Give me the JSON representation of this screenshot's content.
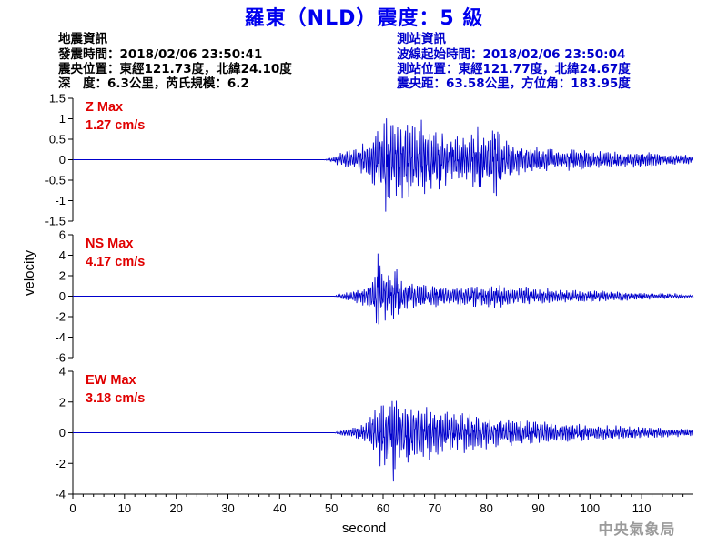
{
  "title": "羅東（NLD）震度：5 級",
  "quake_info": {
    "heading": "地震資訊",
    "lines": [
      "發震時間：2018/02/06 23:50:41",
      "震央位置：東經121.73度，北緯24.10度",
      "深　度：6.3公里，芮氏規模：6.2"
    ]
  },
  "station_info": {
    "heading": "測站資訊",
    "lines": [
      "波線起始時間：2018/02/06 23:50:04",
      "測站位置：東經121.77度，北緯24.67度",
      "震央距：63.58公里，方位角：183.95度"
    ]
  },
  "agency": "中央氣象局",
  "colors": {
    "trace": "#0000cc",
    "max_label": "#e00000",
    "title": "#0000ee",
    "agency": "#9a9a9a"
  },
  "chart_data": {
    "type": "line",
    "xlabel": "second",
    "ylabel": "velocity",
    "xlim": [
      0,
      120
    ],
    "x_ticks": [
      "0",
      "10",
      "20",
      "30",
      "40",
      "50",
      "60",
      "70",
      "80",
      "90",
      "100",
      "110"
    ],
    "panels": [
      {
        "component": "Z",
        "label": "Z Max",
        "max_text": "1.27 cm/s",
        "ylim": [
          -1.5,
          1.5
        ],
        "y_ticks": [
          "1.5",
          "1",
          "0.5",
          "0",
          "-0.5",
          "-1",
          "-1.5"
        ],
        "onset_s": 48.5,
        "peak_s": 60.5,
        "series": [
          {
            "x": 0,
            "y": 0
          },
          {
            "x": 48.5,
            "y": 0
          },
          {
            "x": 50,
            "y": 0.05
          },
          {
            "x": 51,
            "y": -0.12
          },
          {
            "x": 52,
            "y": 0.2
          },
          {
            "x": 53,
            "y": -0.25
          },
          {
            "x": 54,
            "y": 0.3
          },
          {
            "x": 55,
            "y": -0.28
          },
          {
            "x": 56,
            "y": 0.45
          },
          {
            "x": 57,
            "y": -0.5
          },
          {
            "x": 58,
            "y": 0.7
          },
          {
            "x": 59,
            "y": -0.9
          },
          {
            "x": 60,
            "y": 1.0
          },
          {
            "x": 60.5,
            "y": -1.27
          },
          {
            "x": 61.5,
            "y": 0.9
          },
          {
            "x": 62.5,
            "y": -1.05
          },
          {
            "x": 63.5,
            "y": 1.1
          },
          {
            "x": 64.5,
            "y": -0.95
          },
          {
            "x": 65.5,
            "y": 1.15
          },
          {
            "x": 66.5,
            "y": -0.9
          },
          {
            "x": 67.5,
            "y": 1.05
          },
          {
            "x": 68.5,
            "y": -0.8
          },
          {
            "x": 69.5,
            "y": 0.85
          },
          {
            "x": 70.5,
            "y": -0.7
          },
          {
            "x": 72,
            "y": 0.75
          },
          {
            "x": 73.5,
            "y": -0.55
          },
          {
            "x": 75,
            "y": 0.65
          },
          {
            "x": 76.5,
            "y": -0.6
          },
          {
            "x": 78,
            "y": 0.9
          },
          {
            "x": 79.5,
            "y": -0.6
          },
          {
            "x": 81,
            "y": 0.8
          },
          {
            "x": 82,
            "y": 1.1
          },
          {
            "x": 83,
            "y": -0.55
          },
          {
            "x": 85,
            "y": 0.45
          },
          {
            "x": 87,
            "y": -0.4
          },
          {
            "x": 89,
            "y": 0.35
          },
          {
            "x": 91,
            "y": -0.35
          },
          {
            "x": 93,
            "y": 0.3
          },
          {
            "x": 95,
            "y": -0.3
          },
          {
            "x": 97,
            "y": 0.3
          },
          {
            "x": 99,
            "y": -0.25
          },
          {
            "x": 101,
            "y": 0.25
          },
          {
            "x": 103,
            "y": -0.25
          },
          {
            "x": 105,
            "y": 0.25
          },
          {
            "x": 107,
            "y": -0.2
          },
          {
            "x": 109,
            "y": 0.2
          },
          {
            "x": 111,
            "y": -0.2
          },
          {
            "x": 113,
            "y": 0.2
          },
          {
            "x": 115,
            "y": -0.15
          },
          {
            "x": 117,
            "y": 0.15
          },
          {
            "x": 119,
            "y": -0.15
          },
          {
            "x": 120,
            "y": 0.1
          }
        ]
      },
      {
        "component": "NS",
        "label": "NS Max",
        "max_text": "4.17 cm/s",
        "ylim": [
          -6,
          6
        ],
        "y_ticks": [
          "6",
          "4",
          "2",
          "0",
          "-2",
          "-4",
          "-6"
        ],
        "onset_s": 50.5,
        "peak_s": 59,
        "series": [
          {
            "x": 0,
            "y": 0
          },
          {
            "x": 50.5,
            "y": 0
          },
          {
            "x": 52,
            "y": 0.3
          },
          {
            "x": 53,
            "y": -0.5
          },
          {
            "x": 54,
            "y": 0.6
          },
          {
            "x": 55,
            "y": -0.8
          },
          {
            "x": 56,
            "y": 1.0
          },
          {
            "x": 57,
            "y": -1.2
          },
          {
            "x": 58,
            "y": 2.0
          },
          {
            "x": 58.5,
            "y": -2.5
          },
          {
            "x": 59,
            "y": 4.17
          },
          {
            "x": 59.5,
            "y": -3.0
          },
          {
            "x": 60.5,
            "y": 2.5
          },
          {
            "x": 61.5,
            "y": -2.0
          },
          {
            "x": 62.5,
            "y": -3.3
          },
          {
            "x": 63.5,
            "y": 2.0
          },
          {
            "x": 64.5,
            "y": -1.5
          },
          {
            "x": 65.5,
            "y": 1.8
          },
          {
            "x": 66.5,
            "y": -1.3
          },
          {
            "x": 67.5,
            "y": 1.5
          },
          {
            "x": 68.5,
            "y": -1.0
          },
          {
            "x": 70,
            "y": 1.4
          },
          {
            "x": 71.5,
            "y": -1.2
          },
          {
            "x": 73,
            "y": 1.0
          },
          {
            "x": 74.5,
            "y": -1.0
          },
          {
            "x": 76,
            "y": 1.2
          },
          {
            "x": 77.5,
            "y": -1.5
          },
          {
            "x": 79,
            "y": 1.0
          },
          {
            "x": 80.5,
            "y": -1.2
          },
          {
            "x": 82,
            "y": 1.3
          },
          {
            "x": 84,
            "y": -1.0
          },
          {
            "x": 86,
            "y": 0.9
          },
          {
            "x": 88,
            "y": -1.0
          },
          {
            "x": 90,
            "y": 0.8
          },
          {
            "x": 92,
            "y": -0.8
          },
          {
            "x": 94,
            "y": 0.7
          },
          {
            "x": 96,
            "y": -0.7
          },
          {
            "x": 98,
            "y": 0.6
          },
          {
            "x": 100,
            "y": -0.6
          },
          {
            "x": 102,
            "y": 0.6
          },
          {
            "x": 104,
            "y": -0.5
          },
          {
            "x": 106,
            "y": 0.5
          },
          {
            "x": 108,
            "y": -0.4
          },
          {
            "x": 110,
            "y": 0.4
          },
          {
            "x": 112,
            "y": -0.35
          },
          {
            "x": 114,
            "y": 0.3
          },
          {
            "x": 116,
            "y": -0.3
          },
          {
            "x": 118,
            "y": 0.25
          },
          {
            "x": 120,
            "y": 0.1
          }
        ]
      },
      {
        "component": "EW",
        "label": "EW Max",
        "max_text": "3.18 cm/s",
        "ylim": [
          -4,
          4
        ],
        "y_ticks": [
          "4",
          "2",
          "0",
          "-2",
          "-4"
        ],
        "onset_s": 50.5,
        "peak_s": 62,
        "series": [
          {
            "x": 0,
            "y": 0
          },
          {
            "x": 50.5,
            "y": 0
          },
          {
            "x": 52,
            "y": 0.2
          },
          {
            "x": 53,
            "y": -0.3
          },
          {
            "x": 54,
            "y": 0.3
          },
          {
            "x": 55,
            "y": -0.5
          },
          {
            "x": 56,
            "y": 0.6
          },
          {
            "x": 57,
            "y": -0.8
          },
          {
            "x": 58,
            "y": 1.5
          },
          {
            "x": 58.5,
            "y": -2.0
          },
          {
            "x": 59,
            "y": 2.5
          },
          {
            "x": 59.5,
            "y": -2.5
          },
          {
            "x": 60.5,
            "y": 2.3
          },
          {
            "x": 61.5,
            "y": -2.0
          },
          {
            "x": 62,
            "y": -3.18
          },
          {
            "x": 63,
            "y": 2.2
          },
          {
            "x": 64,
            "y": -2.2
          },
          {
            "x": 65,
            "y": 2.3
          },
          {
            "x": 66,
            "y": -2.0
          },
          {
            "x": 67,
            "y": 2.0
          },
          {
            "x": 68,
            "y": -1.7
          },
          {
            "x": 69,
            "y": 1.8
          },
          {
            "x": 70,
            "y": -1.5
          },
          {
            "x": 71,
            "y": 1.7
          },
          {
            "x": 72,
            "y": -1.4
          },
          {
            "x": 73,
            "y": 1.5
          },
          {
            "x": 74,
            "y": -1.3
          },
          {
            "x": 76,
            "y": 1.4
          },
          {
            "x": 78,
            "y": -1.3
          },
          {
            "x": 80,
            "y": 1.2
          },
          {
            "x": 82,
            "y": -1.0
          },
          {
            "x": 84,
            "y": 1.0
          },
          {
            "x": 86,
            "y": -0.9
          },
          {
            "x": 88,
            "y": 0.9
          },
          {
            "x": 90,
            "y": -0.8
          },
          {
            "x": 92,
            "y": 0.8
          },
          {
            "x": 94,
            "y": -0.7
          },
          {
            "x": 96,
            "y": 0.7
          },
          {
            "x": 98,
            "y": -0.6
          },
          {
            "x": 100,
            "y": 0.6
          },
          {
            "x": 102,
            "y": -0.5
          },
          {
            "x": 104,
            "y": 0.5
          },
          {
            "x": 106,
            "y": -0.5
          },
          {
            "x": 108,
            "y": 0.4
          },
          {
            "x": 110,
            "y": -0.4
          },
          {
            "x": 112,
            "y": 0.4
          },
          {
            "x": 114,
            "y": -0.35
          },
          {
            "x": 116,
            "y": 0.3
          },
          {
            "x": 118,
            "y": -0.3
          },
          {
            "x": 120,
            "y": 0.2
          }
        ]
      }
    ]
  }
}
